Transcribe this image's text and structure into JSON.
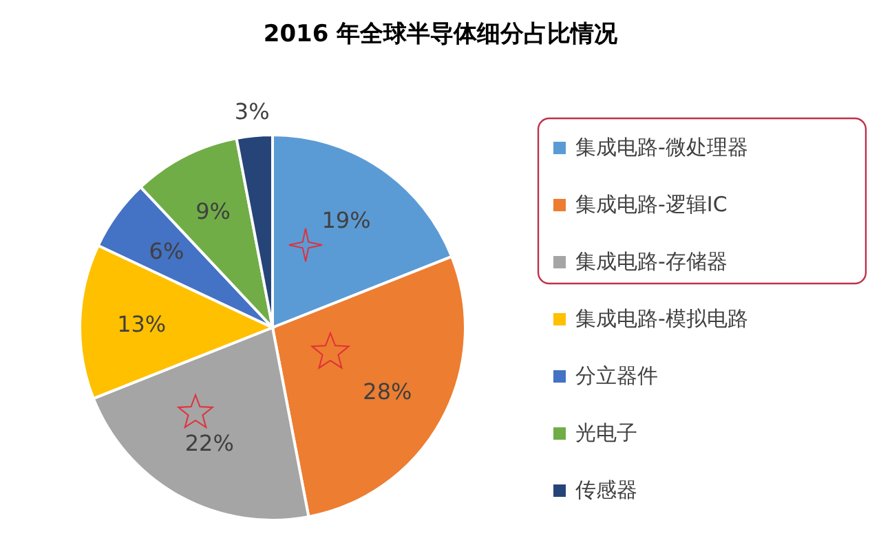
{
  "chart_data": {
    "type": "pie",
    "title": "2016 年全球半导体细分占比情况",
    "categories": [
      "集成电路-微处理器",
      "集成电路-逻辑IC",
      "集成电路-存储器",
      "集成电路-模拟电路",
      "分立器件",
      "光电子",
      "传感器"
    ],
    "values": [
      19,
      28,
      22,
      13,
      6,
      9,
      3
    ],
    "colors": [
      "#5b9bd5",
      "#ed7d31",
      "#a5a5a5",
      "#ffc000",
      "#4472c4",
      "#70ad47",
      "#264478"
    ],
    "value_labels": [
      "19%",
      "28%",
      "22%",
      "13%",
      "6%",
      "9%",
      "3%"
    ],
    "legend": "right"
  }
}
